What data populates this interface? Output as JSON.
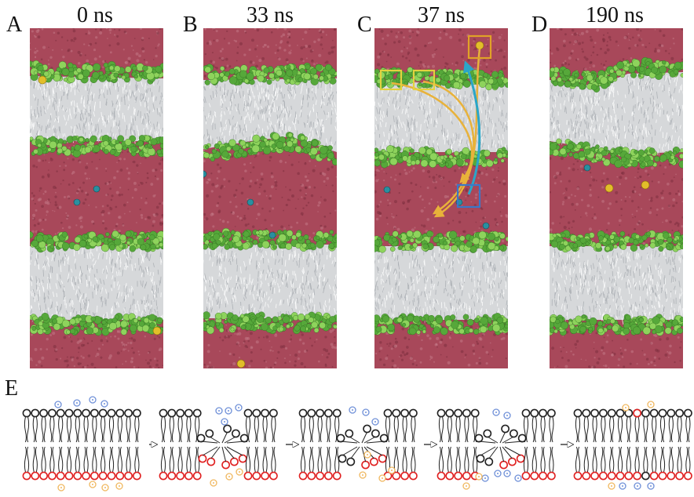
{
  "panels": [
    {
      "id": "A",
      "letter": "A",
      "time": "0 ns"
    },
    {
      "id": "B",
      "letter": "B",
      "time": "33 ns"
    },
    {
      "id": "C",
      "letter": "C",
      "time": "37 ns"
    },
    {
      "id": "D",
      "letter": "D",
      "time": "190 ns"
    }
  ],
  "schematic": {
    "letter": "E"
  },
  "colors": {
    "water": "#a8485a",
    "water_dark": "#7e2f3f",
    "lipid_tail": "#d6d8da",
    "headgroup": "#56a83a",
    "headgroup_light": "#8ed35c",
    "ion_yellow": "#e2be2a",
    "ion_cyan": "#2a8fa0",
    "arrow_yellow": "#e8b23a",
    "arrow_blue": "#2aa6c8",
    "box_yellow": "#e3d23f",
    "box_orange": "#e0a227",
    "box_blue": "#3a78c8",
    "schem_head_black": "#222222",
    "schem_head_red": "#e02020",
    "schem_ion_blue": "#6f90d8",
    "schem_ion_orange": "#f0b860"
  }
}
